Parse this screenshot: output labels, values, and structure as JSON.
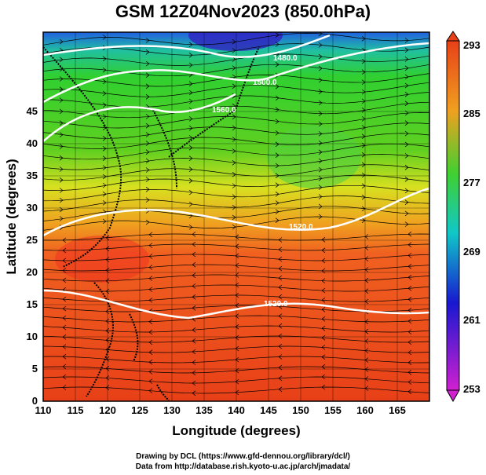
{
  "title": "GSM 12Z04Nov2023 (850.0hPa)",
  "axes": {
    "xlabel": "Longitude (degrees)",
    "ylabel": "Latitude  (degrees)",
    "x_ticks": [
      "110",
      "115",
      "120",
      "125",
      "130",
      "135",
      "140",
      "145",
      "150",
      "155",
      "160",
      "165"
    ],
    "y_ticks": [
      "0",
      "5",
      "10",
      "15",
      "20",
      "25",
      "30",
      "35",
      "40",
      "45"
    ]
  },
  "colorbar": {
    "labels": [
      "293",
      "285",
      "277",
      "269",
      "261",
      "253"
    ]
  },
  "contour_labels": [
    "1480.0",
    "1500.0",
    "1520.0",
    "1540.0",
    "1560.0"
  ],
  "credits": {
    "line1": "Drawing by DCL (https://www.gfd-dennou.org/library/dcl/)",
    "line2": "Data from http://database.rish.kyoto-u.ac.jp/arch/jmadata/"
  },
  "colors": {
    "warm": "#e8401c",
    "orange": "#f07820",
    "yellow": "#e8e020",
    "green": "#30d030",
    "cyan": "#10c8c8",
    "blue": "#1818d0",
    "magenta": "#d020d0",
    "contour": "#ffffff"
  }
}
